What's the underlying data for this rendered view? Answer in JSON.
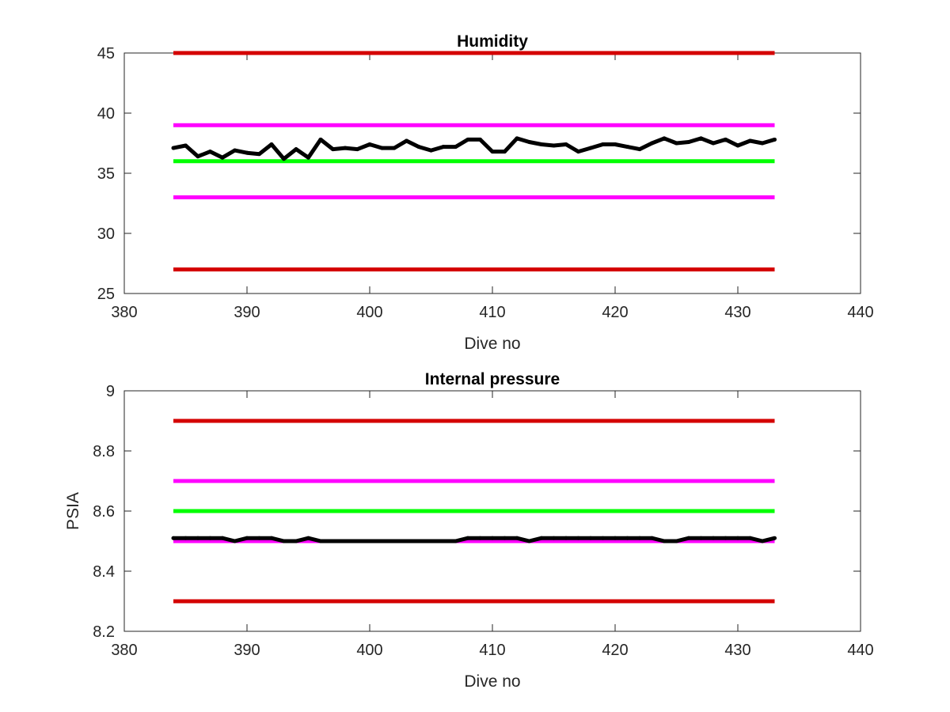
{
  "chart_data": [
    {
      "type": "line",
      "title": "Humidity",
      "xlabel": "Dive no",
      "ylabel": "",
      "xlim": [
        380,
        440
      ],
      "ylim": [
        25,
        45
      ],
      "xticks": [
        "380",
        "390",
        "400",
        "410",
        "420",
        "430",
        "440"
      ],
      "yticks": [
        "25",
        "30",
        "35",
        "40",
        "45"
      ],
      "grid": false,
      "series": [
        {
          "color": "#000000",
          "x": [
            384,
            385,
            386,
            387,
            388,
            389,
            390,
            391,
            392,
            393,
            394,
            395,
            396,
            397,
            398,
            399,
            400,
            401,
            402,
            403,
            404,
            405,
            406,
            407,
            408,
            409,
            410,
            411,
            412,
            413,
            414,
            415,
            416,
            417,
            418,
            419,
            420,
            421,
            422,
            423,
            424,
            425,
            426,
            427,
            428,
            429,
            430,
            431,
            432,
            433
          ],
          "values": [
            37.1,
            37.3,
            36.4,
            36.8,
            36.3,
            36.9,
            36.7,
            36.6,
            37.4,
            36.2,
            37.0,
            36.3,
            37.8,
            37.0,
            37.1,
            37.0,
            37.4,
            37.1,
            37.1,
            37.7,
            37.2,
            36.9,
            37.2,
            37.2,
            37.8,
            37.8,
            36.8,
            36.8,
            37.9,
            37.6,
            37.4,
            37.3,
            37.4,
            36.8,
            37.1,
            37.4,
            37.4,
            37.2,
            37.0,
            37.5,
            37.9,
            37.5,
            37.6,
            37.9,
            37.5,
            37.8,
            37.3,
            37.7,
            37.5,
            37.8
          ]
        }
      ],
      "reference_lines": [
        {
          "y": 45,
          "color": "#d40000",
          "x_range": [
            384,
            433
          ]
        },
        {
          "y": 39,
          "color": "#ff00ff",
          "x_range": [
            384,
            433
          ]
        },
        {
          "y": 36,
          "color": "#00ff00",
          "x_range": [
            384,
            433
          ]
        },
        {
          "y": 33,
          "color": "#ff00ff",
          "x_range": [
            384,
            433
          ]
        },
        {
          "y": 27,
          "color": "#d40000",
          "x_range": [
            384,
            433
          ]
        }
      ]
    },
    {
      "type": "line",
      "title": "Internal pressure",
      "xlabel": "Dive no",
      "ylabel": "PSIA",
      "xlim": [
        380,
        440
      ],
      "ylim": [
        8.2,
        9.0
      ],
      "xticks": [
        "380",
        "390",
        "400",
        "410",
        "420",
        "430",
        "440"
      ],
      "yticks": [
        "8.2",
        "8.4",
        "8.6",
        "8.8",
        "9"
      ],
      "grid": false,
      "series": [
        {
          "color": "#000000",
          "x": [
            384,
            385,
            386,
            387,
            388,
            389,
            390,
            391,
            392,
            393,
            394,
            395,
            396,
            397,
            398,
            399,
            400,
            401,
            402,
            403,
            404,
            405,
            406,
            407,
            408,
            409,
            410,
            411,
            412,
            413,
            414,
            415,
            416,
            417,
            418,
            419,
            420,
            421,
            422,
            423,
            424,
            425,
            426,
            427,
            428,
            429,
            430,
            431,
            432,
            433
          ],
          "values": [
            8.51,
            8.51,
            8.51,
            8.51,
            8.51,
            8.5,
            8.51,
            8.51,
            8.51,
            8.5,
            8.5,
            8.51,
            8.5,
            8.5,
            8.5,
            8.5,
            8.5,
            8.5,
            8.5,
            8.5,
            8.5,
            8.5,
            8.5,
            8.5,
            8.51,
            8.51,
            8.51,
            8.51,
            8.51,
            8.5,
            8.51,
            8.51,
            8.51,
            8.51,
            8.51,
            8.51,
            8.51,
            8.51,
            8.51,
            8.51,
            8.5,
            8.5,
            8.51,
            8.51,
            8.51,
            8.51,
            8.51,
            8.51,
            8.5,
            8.51
          ]
        }
      ],
      "reference_lines": [
        {
          "y": 8.9,
          "color": "#d40000",
          "x_range": [
            384,
            433
          ]
        },
        {
          "y": 8.7,
          "color": "#ff00ff",
          "x_range": [
            384,
            433
          ]
        },
        {
          "y": 8.6,
          "color": "#00ff00",
          "x_range": [
            384,
            433
          ]
        },
        {
          "y": 8.5,
          "color": "#ff00ff",
          "x_range": [
            384,
            433
          ]
        },
        {
          "y": 8.3,
          "color": "#d40000",
          "x_range": [
            384,
            433
          ]
        }
      ]
    }
  ]
}
